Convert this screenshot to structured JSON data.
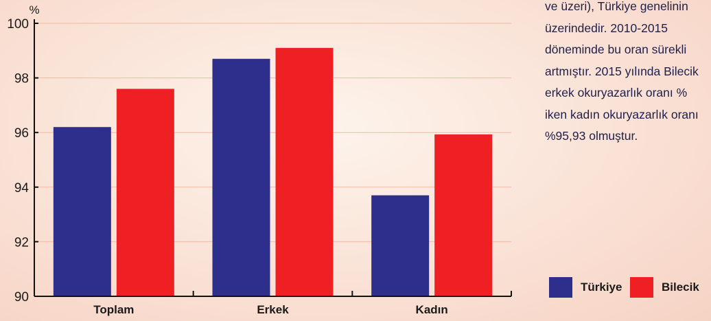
{
  "chart_data": {
    "type": "bar",
    "ylabel": "%",
    "ylim": [
      90,
      100
    ],
    "yticks": [
      90,
      92,
      94,
      96,
      98,
      100
    ],
    "categories": [
      "Toplam",
      "Erkek",
      "Kadın"
    ],
    "series": [
      {
        "name": "Türkiye",
        "color": "#2e2f8c",
        "values": [
          96.2,
          98.7,
          93.7
        ]
      },
      {
        "name": "Bilecik",
        "color": "#ee2024",
        "values": [
          97.6,
          99.1,
          95.93
        ]
      }
    ],
    "grid": true,
    "legend_position": "bottom-right"
  },
  "side_text": {
    "lines": [
      "ve üzeri), Türkiye genelinin",
      "üzerindedir. 2010-2015",
      "döneminde bu oran sürekli",
      "artmıştır. 2015 yılında Bilecik",
      "erkek okuryazarlık oranı %",
      "iken kadın okuryazarlık oranı",
      "%95,93 olmuştur."
    ]
  }
}
